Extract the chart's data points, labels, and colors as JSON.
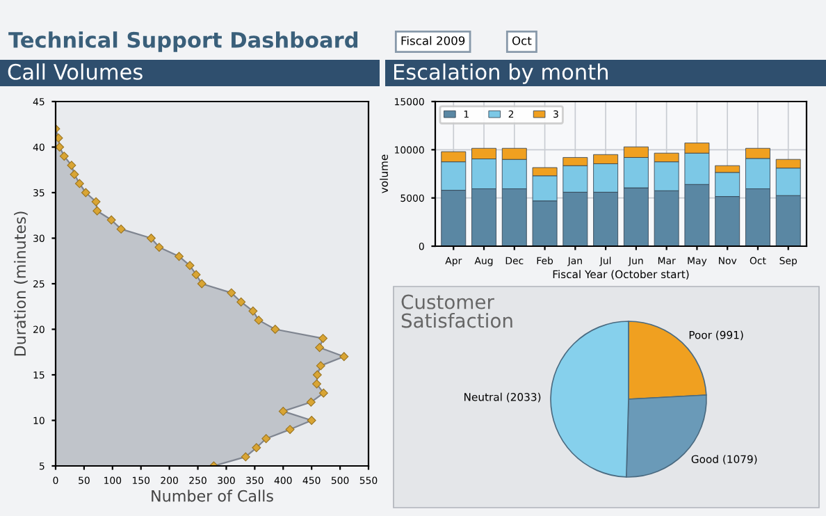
{
  "chart_data": [
    {
      "type": "other",
      "title": "Technical Support Dashboard",
      "annotations": [
        "Fiscal 2009",
        "Oct"
      ]
    },
    {
      "type": "area",
      "orientation": "horizontal",
      "title": "Call Volumes",
      "xlabel": "Number of Calls",
      "ylabel": "Duration (minutes)",
      "x": [
        42,
        41,
        40,
        39,
        38,
        37,
        36,
        35,
        34,
        33,
        32,
        31,
        30,
        29,
        28,
        27,
        26,
        25,
        24,
        23,
        22,
        21,
        20,
        19,
        18,
        17,
        16,
        15,
        14,
        13,
        12,
        11,
        10,
        9,
        8,
        7,
        6,
        5
      ],
      "series": [
        {
          "color": "#b9bdc3",
          "values": [
            0,
            5,
            7,
            15,
            28,
            33,
            42,
            53,
            71,
            73,
            98,
            115,
            168,
            182,
            217,
            236,
            247,
            257,
            309,
            326,
            347,
            357,
            386,
            470,
            464,
            507,
            466,
            460,
            459,
            471,
            449,
            400,
            450,
            412,
            370,
            353,
            334,
            278
          ]
        }
      ],
      "xlim": [
        0,
        550
      ],
      "xticks": [
        0,
        50,
        100,
        150,
        200,
        250,
        300,
        350,
        400,
        450,
        500,
        550
      ],
      "ylim": [
        5,
        45
      ],
      "yticks": [
        5,
        10,
        15,
        20,
        25,
        30,
        35,
        40,
        45
      ],
      "marker": "diamond",
      "grid": false
    },
    {
      "type": "bar",
      "stacked": true,
      "title": "Escalation by month",
      "xlabel": "Fiscal Year (October start)",
      "ylabel": "volume",
      "categories": [
        "Apr",
        "Aug",
        "Dec",
        "Feb",
        "Jan",
        "Jul",
        "Jun",
        "Mar",
        "May",
        "Nov",
        "Oct",
        "Sep"
      ],
      "series": [
        {
          "name": "1",
          "color": "#5a87a3",
          "values": [
            5800,
            5950,
            5950,
            4700,
            5600,
            5600,
            6050,
            5750,
            6400,
            5150,
            5950,
            5250
          ]
        },
        {
          "name": "2",
          "color": "#7cc8e6",
          "values": [
            2950,
            3100,
            3050,
            2600,
            2750,
            2950,
            3150,
            3000,
            3250,
            2500,
            3150,
            2850
          ]
        },
        {
          "name": "3",
          "color": "#f0a020",
          "values": [
            1050,
            1100,
            1150,
            850,
            850,
            950,
            1100,
            900,
            1050,
            700,
            1050,
            900
          ]
        }
      ],
      "ylim": [
        0,
        15000
      ],
      "yticks": [
        0,
        5000,
        10000,
        15000
      ],
      "grid": true,
      "legend": "top left"
    },
    {
      "type": "pie",
      "title": "Customer Satisfaction",
      "categories": [
        "Poor (991)",
        "Good (1079)",
        "Neutral (2033)"
      ],
      "values": [
        991,
        1079,
        2033
      ],
      "colors": [
        "#f0a020",
        "#6a9ab8",
        "#86d0ec"
      ]
    }
  ]
}
